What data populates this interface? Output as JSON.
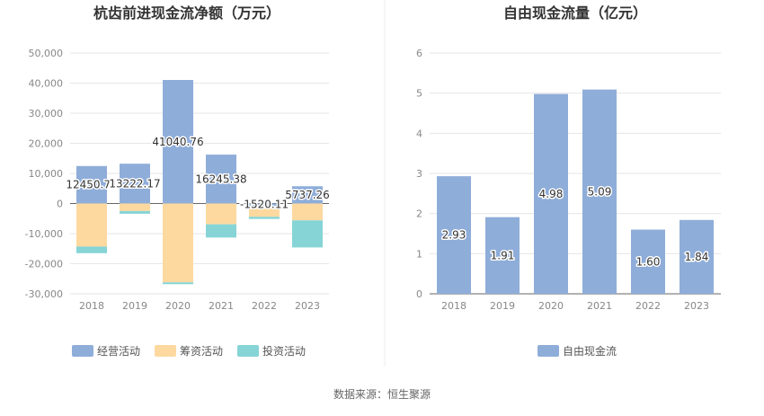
{
  "footer": {
    "source": "数据来源：恒生聚源"
  },
  "chart_data": [
    {
      "type": "bar",
      "stacked": true,
      "title": "杭齿前进现金流净额（万元）",
      "categories": [
        "2018",
        "2019",
        "2020",
        "2021",
        "2022",
        "2023"
      ],
      "ylim": [
        -30000,
        50000
      ],
      "yticks": [
        50000,
        40000,
        30000,
        20000,
        10000,
        0,
        -10000,
        -20000,
        -30000
      ],
      "ytick_labels": [
        "50,000",
        "40,000",
        "30,000",
        "20,000",
        "10,000",
        "0",
        "-10,000",
        "-20,000",
        "-30,000"
      ],
      "series": [
        {
          "name": "经营活动",
          "color": "#8fadd9",
          "values": [
            12450.71,
            13222.17,
            41040.76,
            16245.38,
            -1520.11,
            5737.26
          ]
        },
        {
          "name": "筹资活动",
          "color": "#fdd9a0",
          "values": [
            -14300,
            -2500,
            -26200,
            -6900,
            -2900,
            -5600
          ]
        },
        {
          "name": "投资活动",
          "color": "#86d4d6",
          "values": [
            -2200,
            -900,
            -600,
            -4400,
            -700,
            -9000
          ]
        }
      ],
      "data_labels": [
        "12450.71",
        "13222.17",
        "41040.76",
        "16245.38",
        "-1520.11",
        "5737.26"
      ],
      "grid": true,
      "legend_position": "bottom"
    },
    {
      "type": "bar",
      "title": "自由现金流量（亿元）",
      "categories": [
        "2018",
        "2019",
        "2020",
        "2021",
        "2022",
        "2023"
      ],
      "ylim": [
        0,
        6
      ],
      "yticks": [
        0,
        1,
        2,
        3,
        4,
        5,
        6
      ],
      "ytick_labels": [
        "0",
        "1",
        "2",
        "3",
        "4",
        "5",
        "6"
      ],
      "series": [
        {
          "name": "自由现金流",
          "color": "#8fadd9",
          "values": [
            2.93,
            1.91,
            4.98,
            5.09,
            1.6,
            1.84
          ]
        }
      ],
      "data_labels": [
        "2.93",
        "1.91",
        "4.98",
        "5.09",
        "1.60",
        "1.84"
      ],
      "grid": true,
      "legend_position": "bottom"
    }
  ]
}
